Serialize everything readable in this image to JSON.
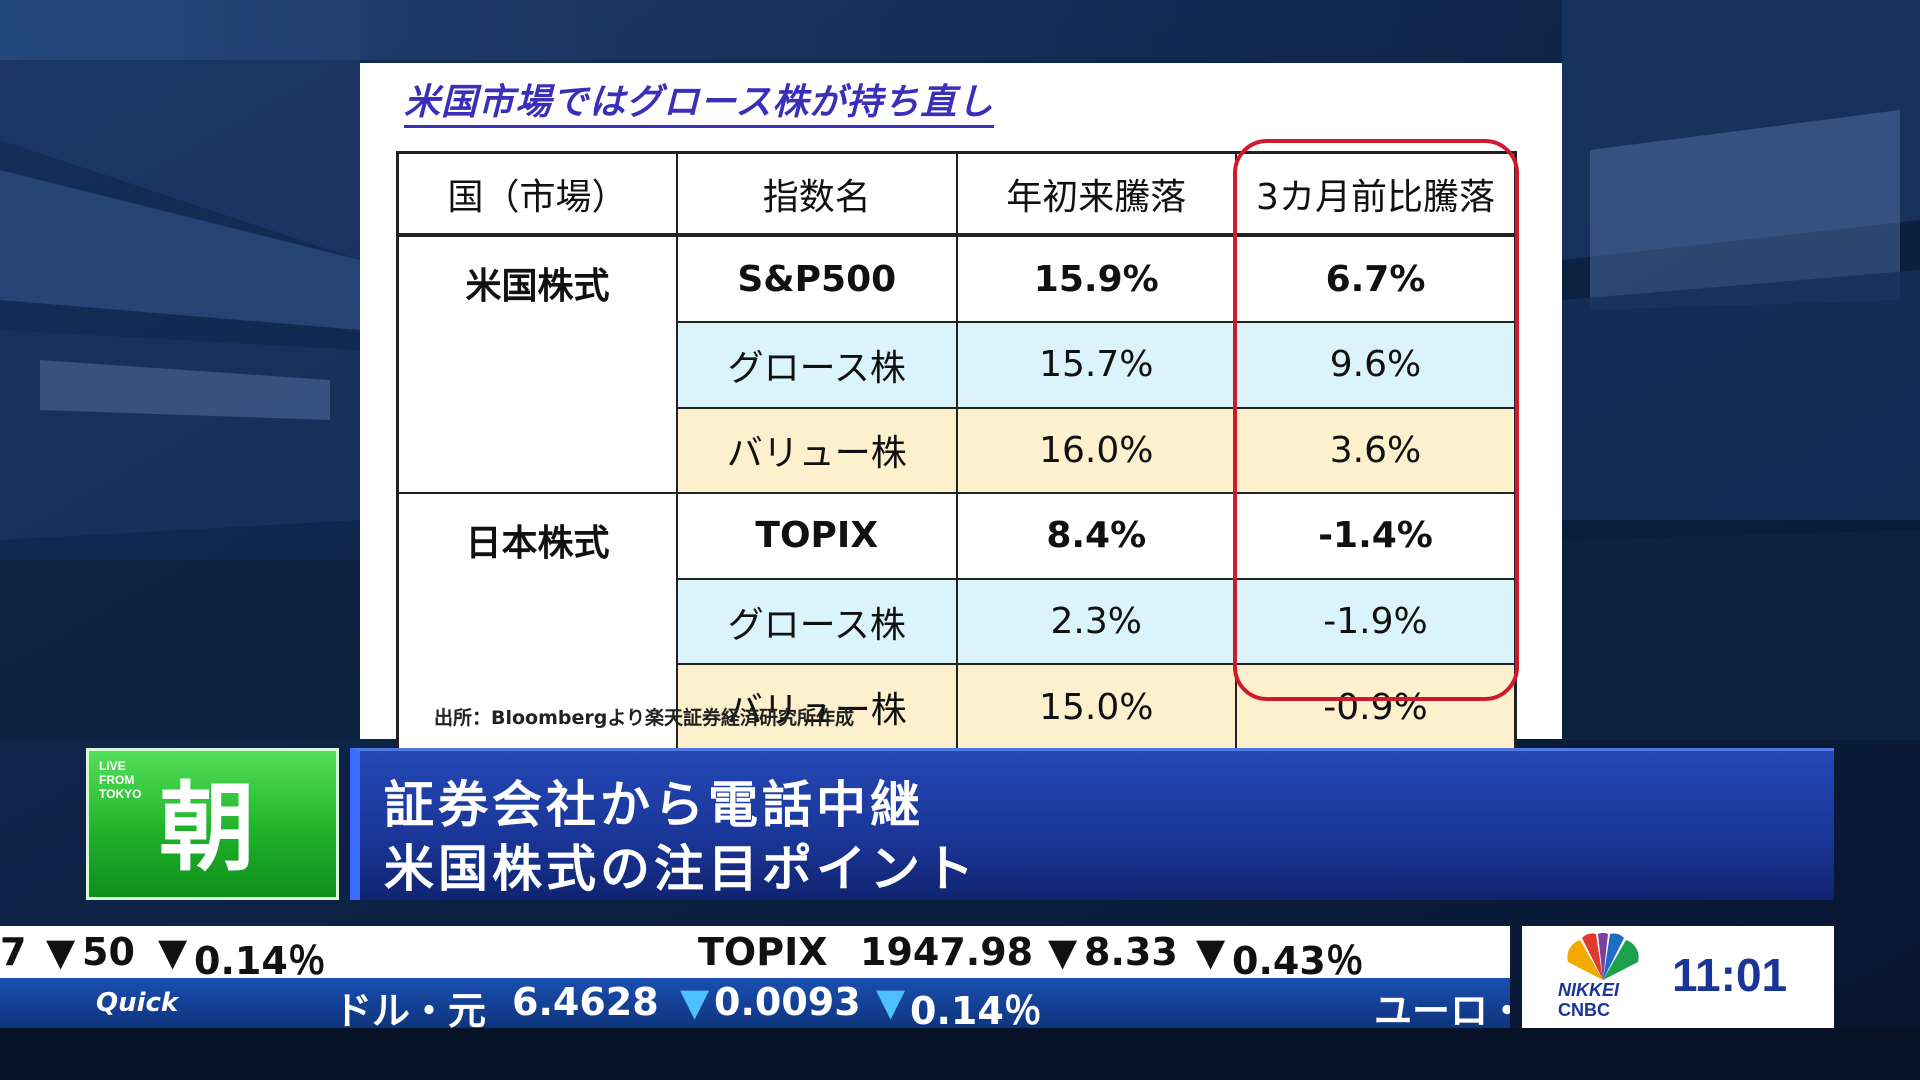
{
  "slide": {
    "title": "米国市場ではグロース株が持ち直し",
    "headers": [
      "国（市場）",
      "指数名",
      "年初来騰落",
      "3カ月前比騰落"
    ],
    "groups": [
      {
        "market": "米国株式",
        "rows": [
          {
            "index": "S&P500",
            "ytd": "15.9%",
            "m3": "6.7%",
            "style": "bold"
          },
          {
            "index": "グロース株",
            "ytd": "15.7%",
            "m3": "9.6%",
            "style": "growth"
          },
          {
            "index": "バリュー株",
            "ytd": "16.0%",
            "m3": "3.6%",
            "style": "value"
          }
        ]
      },
      {
        "market": "日本株式",
        "rows": [
          {
            "index": "TOPIX",
            "ytd": "8.4%",
            "m3": "-1.4%",
            "style": "bold"
          },
          {
            "index": "グロース株",
            "ytd": "2.3%",
            "m3": "-1.9%",
            "style": "growth"
          },
          {
            "index": "バリュー株",
            "ytd": "15.0%",
            "m3": "-0.9%",
            "style": "value"
          }
        ]
      }
    ],
    "source": "出所：Bloombergより楽天証券経済研究所作成",
    "colors": {
      "growth": "#dbf3fb",
      "value": "#fdf0cc",
      "highlight": "#d0192a",
      "title": "#3a2fb8"
    }
  },
  "lower_third": {
    "live_label": [
      "LIVE",
      "FROM",
      "TOKYO"
    ],
    "program_char": "朝",
    "headline_1": "証券会社から電話中継",
    "headline_2": "米国株式の注目ポイント"
  },
  "ticker": {
    "row1": {
      "prefix": "7",
      "arrow": "▼",
      "a1": "50",
      "a2": "0.14％",
      "name": "TOPIX",
      "value": "1947.98",
      "change": "8.33",
      "pct": "0.43％"
    },
    "row2": {
      "brand": "Quick",
      "name": "ドル・元",
      "value": "6.4628",
      "change": "0.0093",
      "pct": "0.14％",
      "next": "ユーロ・"
    }
  },
  "clock": {
    "time": "11:01",
    "brand_1": "NIKKEI",
    "brand_2": "CNBC"
  }
}
